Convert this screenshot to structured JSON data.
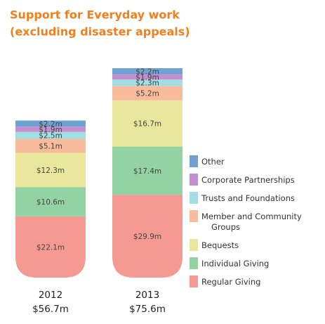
{
  "chart_data": {
    "type": "stacked-bar",
    "title": [
      "Support for Everyday work",
      "(excluding disaster appeals)"
    ],
    "categories": [
      "2012",
      "2013"
    ],
    "totals": {
      "values": [
        56.7,
        75.6
      ],
      "value_labels": [
        "$56.7m",
        "$75.6m"
      ]
    },
    "series": [
      {
        "name": "Other",
        "color": "#6fa2d3",
        "values": [
          2.2,
          2.2
        ],
        "value_labels": [
          "$2.2m",
          "$2.2m"
        ]
      },
      {
        "name": "Corporate Partnerships",
        "color": "#c48fce",
        "values": [
          1.9,
          1.9
        ],
        "value_labels": [
          "$1.9m",
          "$1.9m"
        ]
      },
      {
        "name": "Trusts and Foundations",
        "color": "#a2dfe2",
        "values": [
          2.5,
          2.3
        ],
        "value_labels": [
          "$2.5m",
          "$2.3m"
        ]
      },
      {
        "name": "Member and Community Groups",
        "color": "#f8bb9c",
        "values": [
          5.1,
          5.2
        ],
        "value_labels": [
          "$5.1m",
          "$5.2m"
        ]
      },
      {
        "name": "Bequests",
        "color": "#e8e79c",
        "values": [
          12.3,
          16.7
        ],
        "value_labels": [
          "$12.3m",
          "$16.7m"
        ]
      },
      {
        "name": "Individual Giving",
        "color": "#93d2a3",
        "values": [
          10.6,
          17.4
        ],
        "value_labels": [
          "$10.6m",
          "$17.4m"
        ]
      },
      {
        "name": "Regular Giving",
        "color": "#f59a93",
        "values": [
          22.1,
          29.9
        ],
        "value_labels": [
          "$22.1m",
          "$29.9m"
        ]
      }
    ]
  }
}
